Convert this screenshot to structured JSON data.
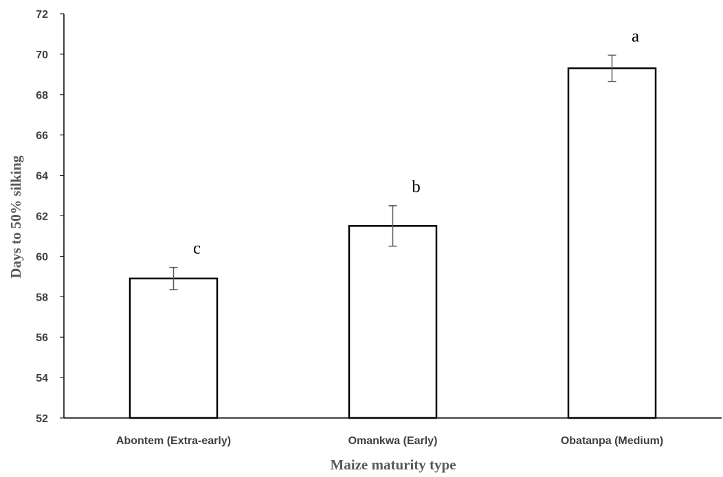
{
  "chart_data": {
    "type": "bar",
    "title": "",
    "xlabel": "Maize maturity type",
    "ylabel": "Days to 50% silking",
    "categories": [
      "Abontem (Extra-early)",
      "Omankwa (Early)",
      "Obatanpa (Medium)"
    ],
    "values": [
      58.9,
      61.5,
      69.3
    ],
    "error": [
      0.55,
      1.0,
      0.65
    ],
    "annotations": [
      "c",
      "b",
      "a"
    ],
    "ylim": [
      52,
      72
    ],
    "yticks": [
      52,
      54,
      56,
      58,
      60,
      62,
      64,
      66,
      68,
      70,
      72
    ],
    "grid": false,
    "legend": "none",
    "bar_fill": "#ffffff",
    "bar_stroke": "#000000",
    "errorbar_color": "#595959"
  }
}
